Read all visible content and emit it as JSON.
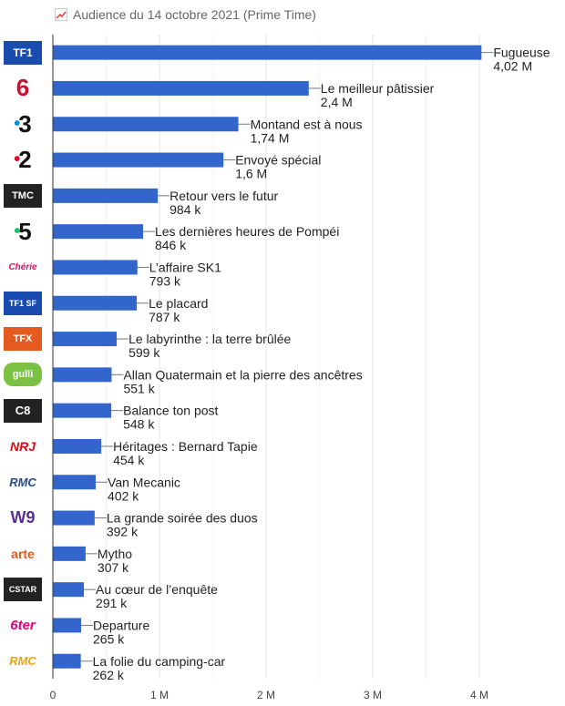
{
  "title": "Audience du 14 octobre 2021 (Prime Time)",
  "title_icon": "line-chart-icon",
  "chart_data": {
    "type": "bar",
    "orientation": "horizontal",
    "title": "Audience du 14 octobre 2021 (Prime Time)",
    "xlim": [
      0,
      4100000
    ],
    "x_ticks": [
      {
        "value": 0,
        "label": "0"
      },
      {
        "value": 1000000,
        "label": "1 M"
      },
      {
        "value": 2000000,
        "label": "2 M"
      },
      {
        "value": 3000000,
        "label": "3 M"
      },
      {
        "value": 4000000,
        "label": "4 M"
      }
    ],
    "grid": true,
    "bar_color": "#3366cc",
    "rows": [
      {
        "channel": "TF1",
        "logo_icon": "tf1-logo-icon",
        "program": "Fugueuse",
        "value": 4020000,
        "value_label": "4,02 M"
      },
      {
        "channel": "M6",
        "logo_icon": "m6-logo-icon",
        "program": "Le meilleur pâtissier",
        "value": 2400000,
        "value_label": "2,4 M"
      },
      {
        "channel": "France 3",
        "logo_icon": "france3-logo-icon",
        "program": "Montand est à nous",
        "value": 1740000,
        "value_label": "1,74 M"
      },
      {
        "channel": "France 2",
        "logo_icon": "france2-logo-icon",
        "program": "Envoyé spécial",
        "value": 1600000,
        "value_label": "1,6 M"
      },
      {
        "channel": "TMC",
        "logo_icon": "tmc-logo-icon",
        "program": "Retour vers le futur",
        "value": 984000,
        "value_label": "984 k"
      },
      {
        "channel": "France 5",
        "logo_icon": "france5-logo-icon",
        "program": "Les dernières heures de Pompéi",
        "value": 846000,
        "value_label": "846 k"
      },
      {
        "channel": "Chérie 25",
        "logo_icon": "cherie25-logo-icon",
        "program": "L’affaire SK1",
        "value": 793000,
        "value_label": "793 k"
      },
      {
        "channel": "TF1 Séries Films",
        "logo_icon": "tf1-series-films-logo-icon",
        "program": "Le placard",
        "value": 787000,
        "value_label": "787 k"
      },
      {
        "channel": "TFX",
        "logo_icon": "tfx-logo-icon",
        "program": "Le labyrinthe : la terre brûlée",
        "value": 599000,
        "value_label": "599 k"
      },
      {
        "channel": "Gulli",
        "logo_icon": "gulli-logo-icon",
        "program": "Allan Quatermain et la pierre des ancêtres",
        "value": 551000,
        "value_label": "551 k"
      },
      {
        "channel": "C8",
        "logo_icon": "c8-logo-icon",
        "program": "Balance ton post",
        "value": 548000,
        "value_label": "548 k"
      },
      {
        "channel": "NRJ 12",
        "logo_icon": "nrj12-logo-icon",
        "program": "Héritages : Bernard Tapie",
        "value": 454000,
        "value_label": "454 k"
      },
      {
        "channel": "RMC Découverte",
        "logo_icon": "rmc-decouverte-logo-icon",
        "program": "Van Mecanic",
        "value": 402000,
        "value_label": "402 k"
      },
      {
        "channel": "W9",
        "logo_icon": "w9-logo-icon",
        "program": "La grande soirée des duos",
        "value": 392000,
        "value_label": "392 k"
      },
      {
        "channel": "Arte",
        "logo_icon": "arte-logo-icon",
        "program": "Mytho",
        "value": 307000,
        "value_label": "307 k"
      },
      {
        "channel": "CStar",
        "logo_icon": "cstar-logo-icon",
        "program": "Au cœur de l’enquête",
        "value": 291000,
        "value_label": "291 k"
      },
      {
        "channel": "6ter",
        "logo_icon": "6ter-logo-icon",
        "program": "Departure",
        "value": 265000,
        "value_label": "265 k"
      },
      {
        "channel": "RMC Story",
        "logo_icon": "rmc-story-logo-icon",
        "program": "La folie du camping-car",
        "value": 262000,
        "value_label": "262 k"
      }
    ]
  }
}
